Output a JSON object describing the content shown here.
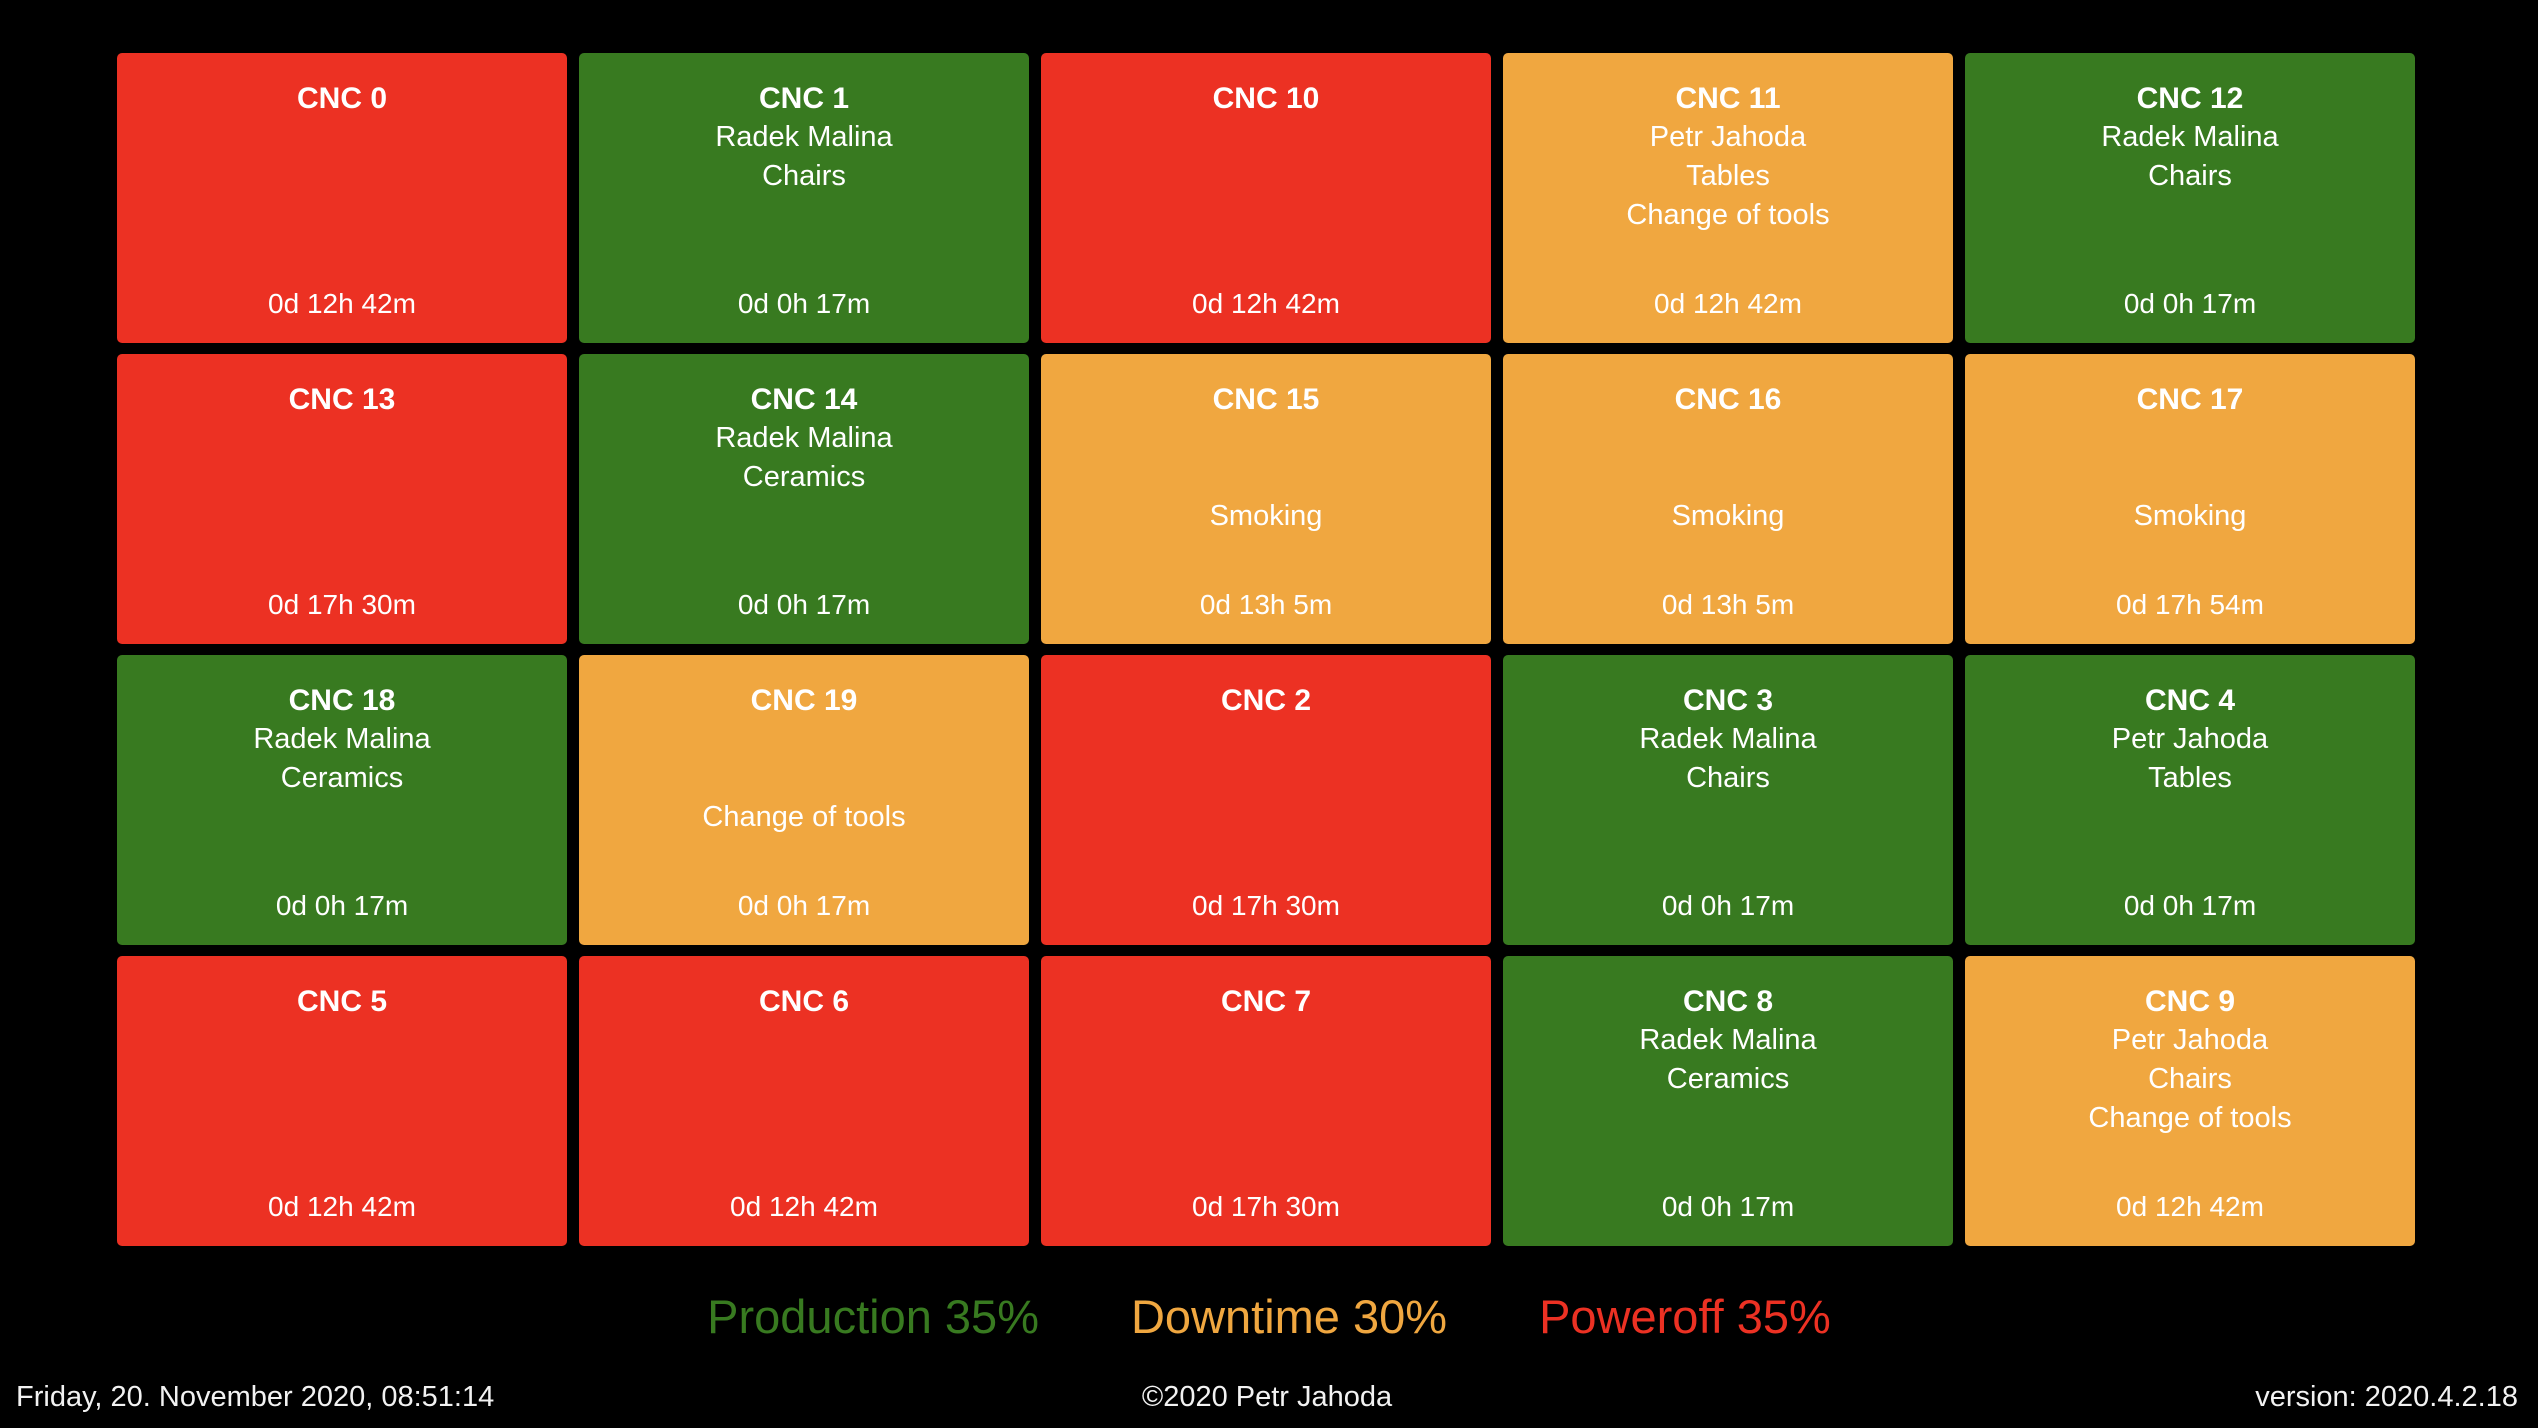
{
  "colors": {
    "production": "#387A20",
    "downtime": "#F0A740",
    "poweroff": "#EC3123",
    "background": "#000000",
    "text": "#FFFFFF"
  },
  "machines": [
    {
      "name": "CNC 0",
      "user": "",
      "order": "",
      "reason": "",
      "duration": "0d 12h 42m",
      "state": "poweroff"
    },
    {
      "name": "CNC 1",
      "user": "Radek Malina",
      "order": "Chairs",
      "reason": "",
      "duration": "0d 0h 17m",
      "state": "production"
    },
    {
      "name": "CNC 10",
      "user": "",
      "order": "",
      "reason": "",
      "duration": "0d 12h 42m",
      "state": "poweroff"
    },
    {
      "name": "CNC 11",
      "user": "Petr Jahoda",
      "order": "Tables",
      "reason": "Change of tools",
      "duration": "0d 12h 42m",
      "state": "downtime"
    },
    {
      "name": "CNC 12",
      "user": "Radek Malina",
      "order": "Chairs",
      "reason": "",
      "duration": "0d 0h 17m",
      "state": "production"
    },
    {
      "name": "CNC 13",
      "user": "",
      "order": "",
      "reason": "",
      "duration": "0d 17h 30m",
      "state": "poweroff"
    },
    {
      "name": "CNC 14",
      "user": "Radek Malina",
      "order": "Ceramics",
      "reason": "",
      "duration": "0d 0h 17m",
      "state": "production"
    },
    {
      "name": "CNC 15",
      "user": "",
      "order": "",
      "reason": "Smoking",
      "duration": "0d 13h 5m",
      "state": "downtime"
    },
    {
      "name": "CNC 16",
      "user": "",
      "order": "",
      "reason": "Smoking",
      "duration": "0d 13h 5m",
      "state": "downtime"
    },
    {
      "name": "CNC 17",
      "user": "",
      "order": "",
      "reason": "Smoking",
      "duration": "0d 17h 54m",
      "state": "downtime"
    },
    {
      "name": "CNC 18",
      "user": "Radek Malina",
      "order": "Ceramics",
      "reason": "",
      "duration": "0d 0h 17m",
      "state": "production"
    },
    {
      "name": "CNC 19",
      "user": "",
      "order": "",
      "reason": "Change of tools",
      "duration": "0d 0h 17m",
      "state": "downtime"
    },
    {
      "name": "CNC 2",
      "user": "",
      "order": "",
      "reason": "",
      "duration": "0d 17h 30m",
      "state": "poweroff"
    },
    {
      "name": "CNC 3",
      "user": "Radek Malina",
      "order": "Chairs",
      "reason": "",
      "duration": "0d 0h 17m",
      "state": "production"
    },
    {
      "name": "CNC 4",
      "user": "Petr Jahoda",
      "order": "Tables",
      "reason": "",
      "duration": "0d 0h 17m",
      "state": "production"
    },
    {
      "name": "CNC 5",
      "user": "",
      "order": "",
      "reason": "",
      "duration": "0d 12h 42m",
      "state": "poweroff"
    },
    {
      "name": "CNC 6",
      "user": "",
      "order": "",
      "reason": "",
      "duration": "0d 12h 42m",
      "state": "poweroff"
    },
    {
      "name": "CNC 7",
      "user": "",
      "order": "",
      "reason": "",
      "duration": "0d 17h 30m",
      "state": "poweroff"
    },
    {
      "name": "CNC 8",
      "user": "Radek Malina",
      "order": "Ceramics",
      "reason": "",
      "duration": "0d 0h 17m",
      "state": "production"
    },
    {
      "name": "CNC 9",
      "user": "Petr Jahoda",
      "order": "Chairs",
      "reason": "Change of tools",
      "duration": "0d 12h 42m",
      "state": "downtime"
    }
  ],
  "legend": {
    "items": [
      {
        "text": "Production 35%",
        "state": "production"
      },
      {
        "text": "Downtime 30%",
        "state": "downtime"
      },
      {
        "text": "Poweroff 35%",
        "state": "poweroff"
      }
    ]
  },
  "footer": {
    "datetime": "Friday, 20. November 2020, 08:51:14",
    "copyright": "©2020 Petr Jahoda",
    "version": "version: 2020.4.2.18"
  }
}
